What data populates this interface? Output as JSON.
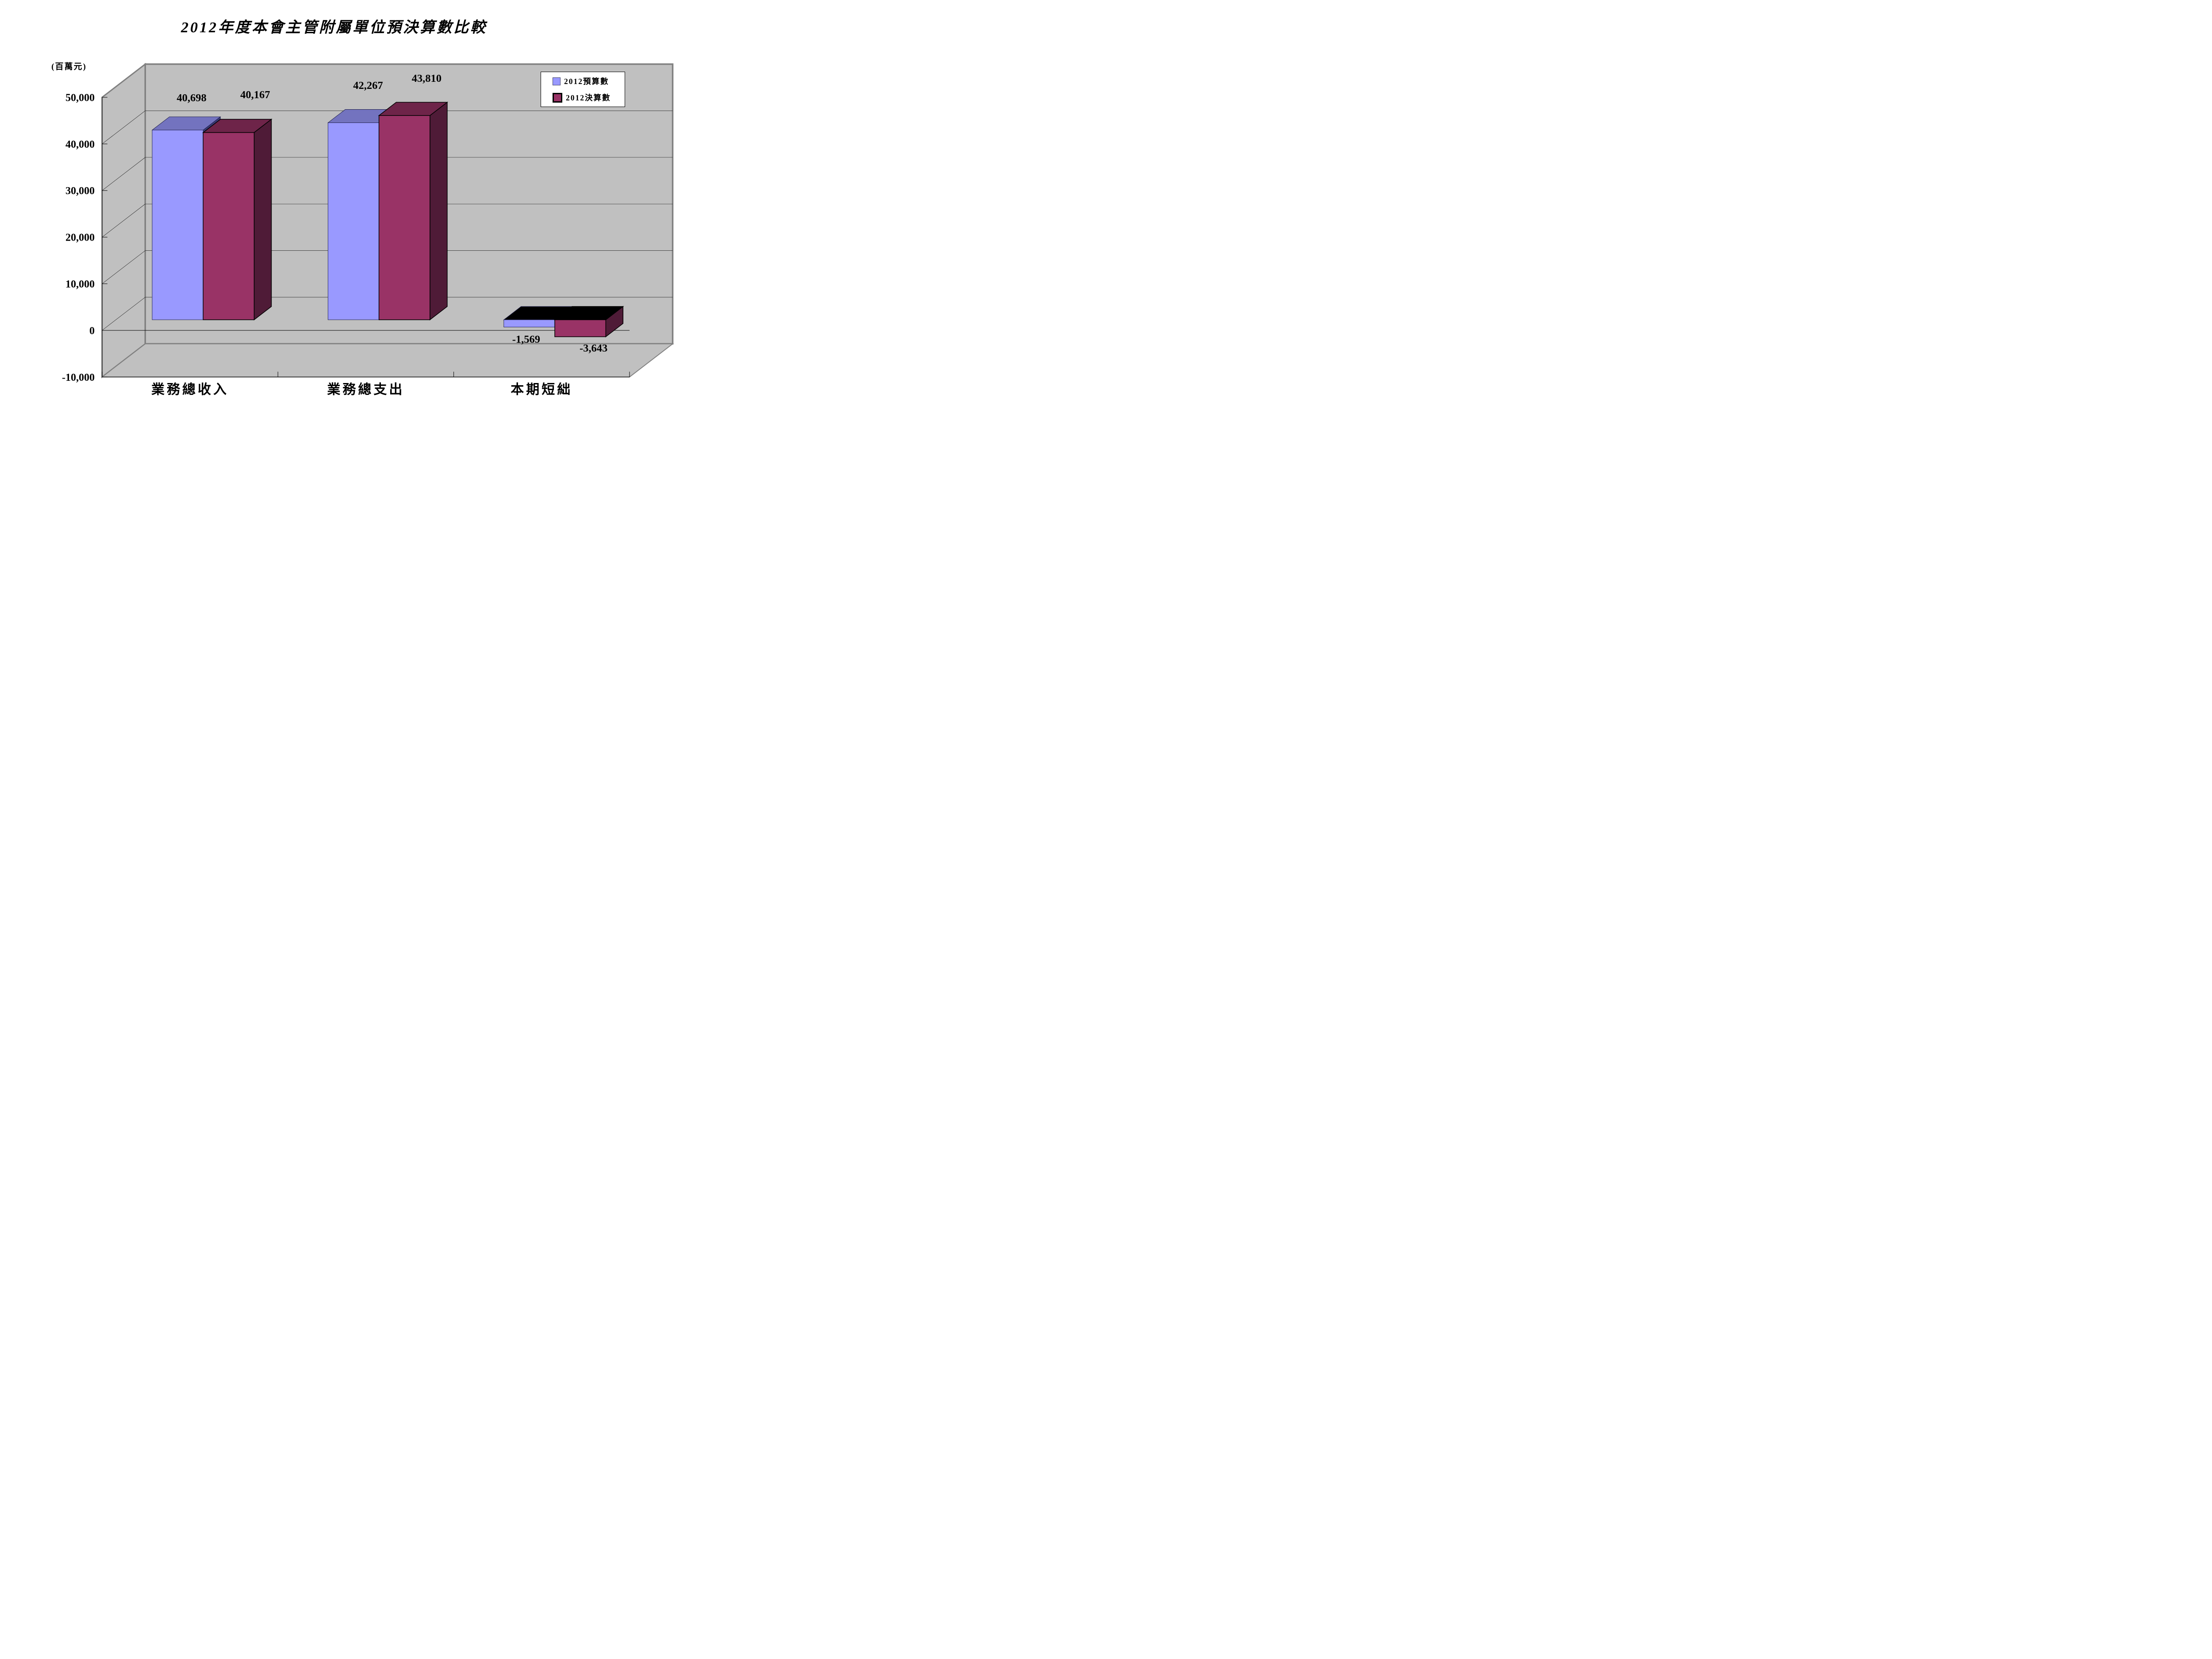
{
  "title": "2012年度本會主管附屬單位預決算數比較",
  "axis_unit_label": "(百萬元)",
  "legend": {
    "position": "top-right",
    "items": [
      {
        "label": "2012預算數",
        "color": "#9999FF"
      },
      {
        "label": "2012決算數",
        "color": "#993366"
      }
    ]
  },
  "chart_data": {
    "type": "bar",
    "projection": "3d",
    "title": "2012年度本會主管附屬單位預決算數比較",
    "ylabel": "(百萬元)",
    "categories": [
      "業務總收入",
      "業務總支出",
      "本期短絀"
    ],
    "series": [
      {
        "name": "2012預算數",
        "values": [
          40698,
          42267,
          -1569
        ],
        "labels": [
          "40,698",
          "42,267",
          "-1,569"
        ],
        "colors": {
          "front": "#9999FF",
          "top": "#7373BF",
          "side": "#3A3A78",
          "stroke": "#20204A"
        }
      },
      {
        "name": "2012決算數",
        "values": [
          40167,
          43810,
          -3643
        ],
        "labels": [
          "40,167",
          "43,810",
          "-3,643"
        ],
        "colors": {
          "front": "#993366",
          "top": "#6E2449",
          "side": "#4F1B37",
          "stroke": "#000000"
        }
      }
    ],
    "ylim": [
      -10000,
      50000
    ],
    "ytick_step": 10000,
    "yticks": [
      "50,000",
      "40,000",
      "30,000",
      "20,000",
      "10,000",
      "0",
      "-10,000"
    ],
    "grid": true,
    "negative_top_color": "#000000",
    "wall_color": "#C0C0C0",
    "wall_border_color": "#808080",
    "gridline_color": "#1A1A1A"
  }
}
